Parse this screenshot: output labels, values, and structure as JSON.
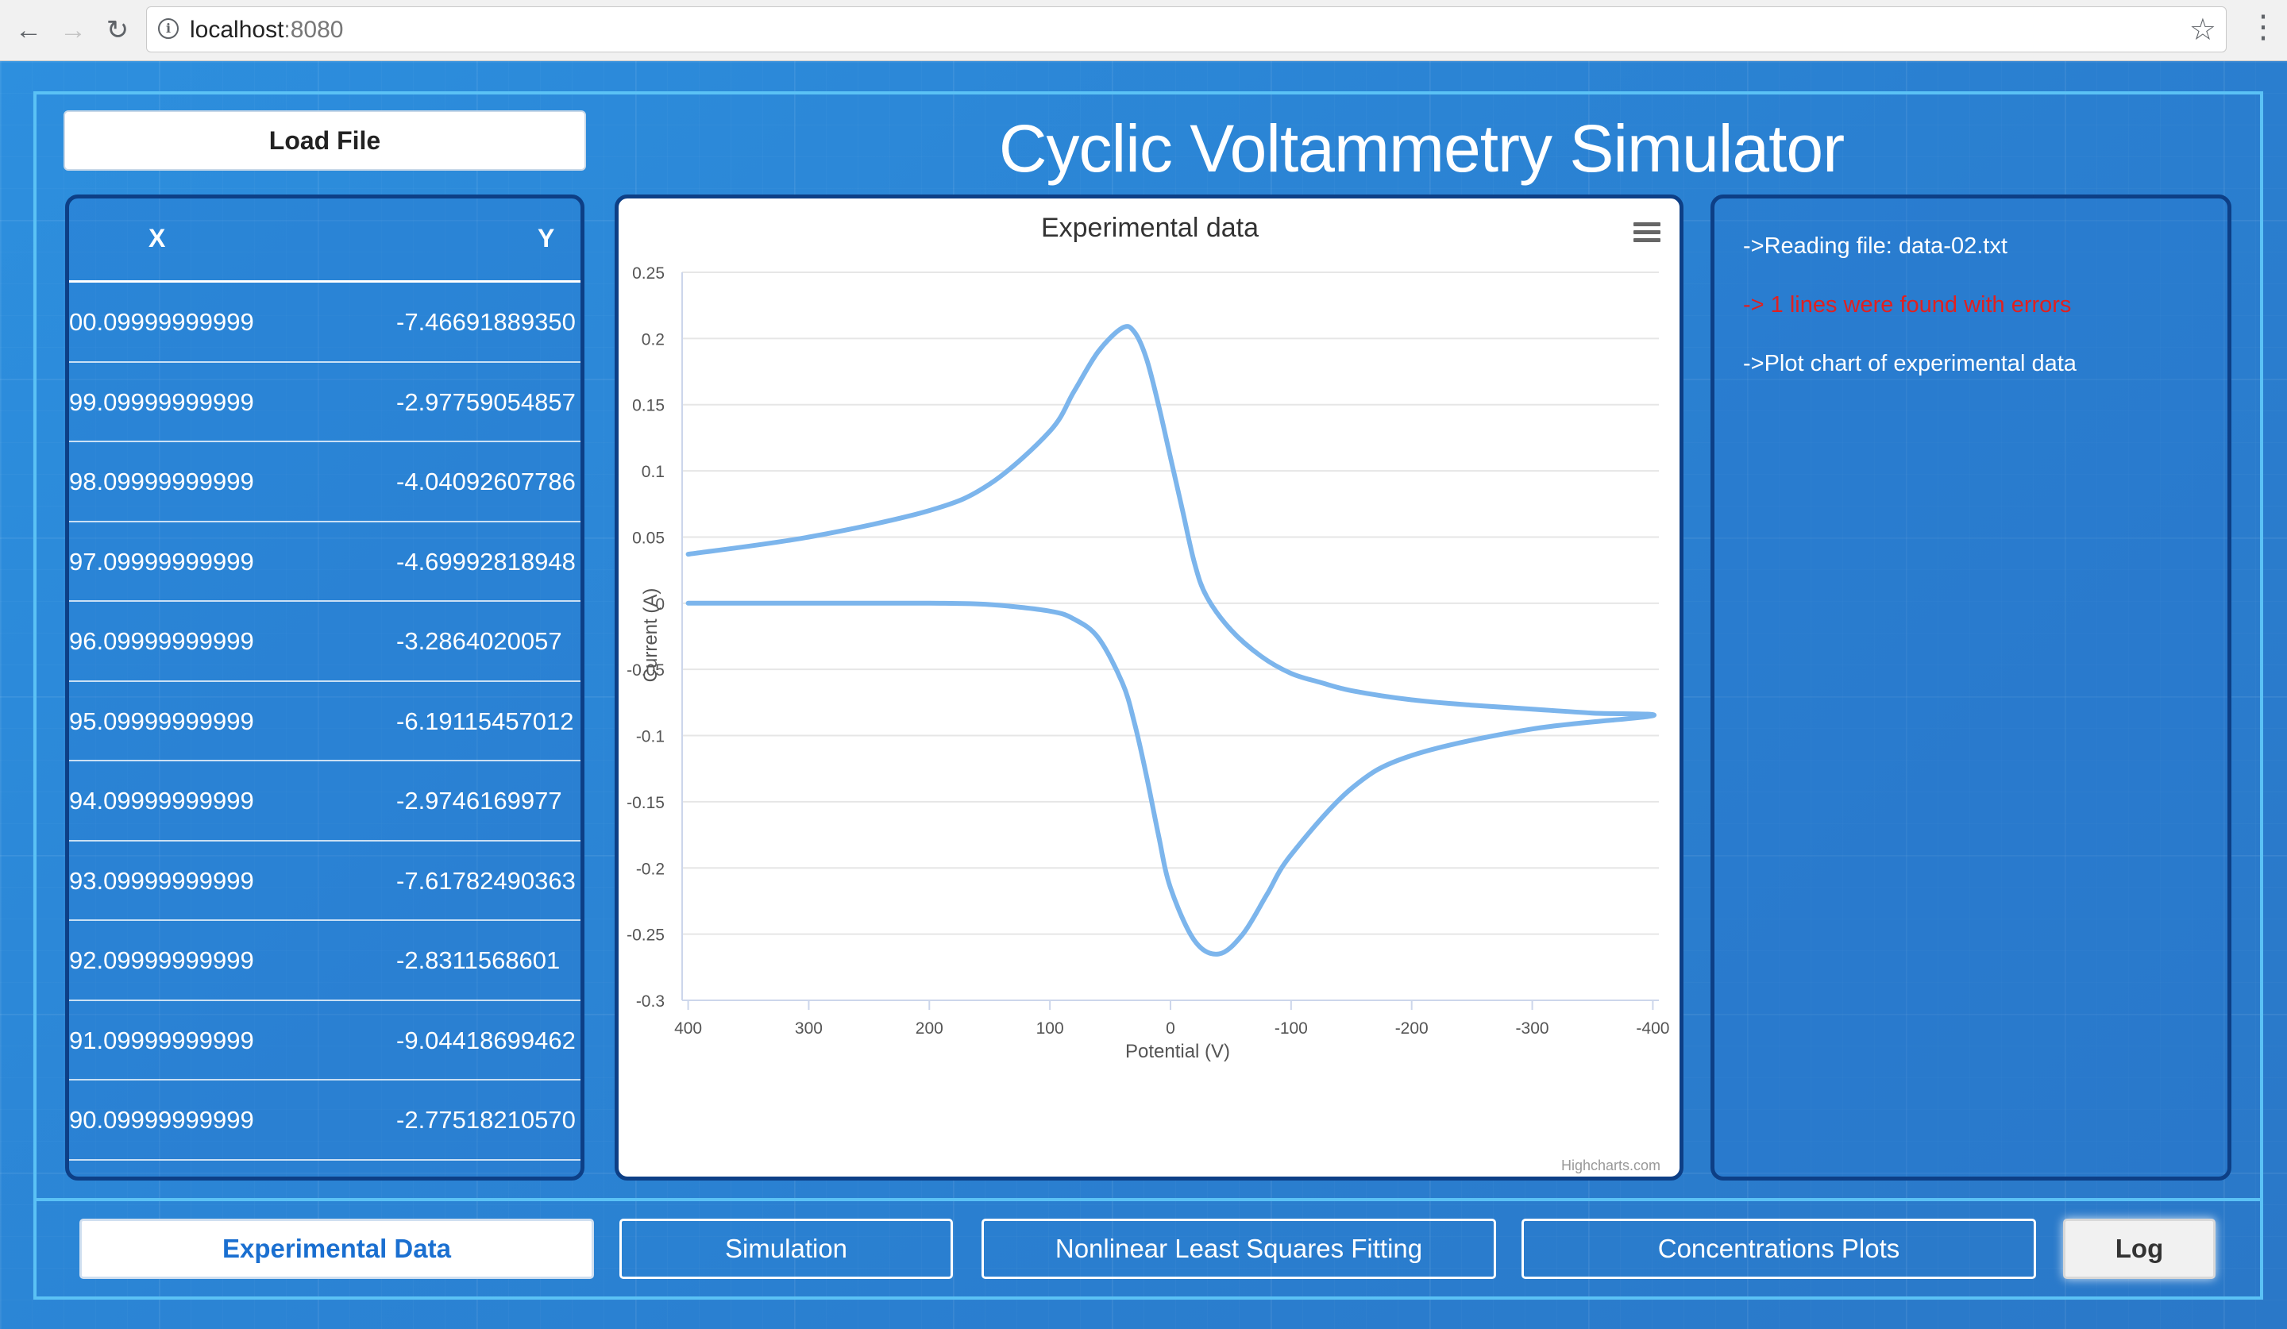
{
  "browser": {
    "url_host": "localhost",
    "url_port": ":8080"
  },
  "app": {
    "title": "Cyclic Voltammetry Simulator",
    "load_button": "Load File"
  },
  "table": {
    "headers": [
      "X",
      "Y"
    ],
    "rows": [
      {
        "x": "00.09999999999",
        "y": "-7.46691889350"
      },
      {
        "x": "99.09999999999",
        "y": "-2.97759054857"
      },
      {
        "x": "98.09999999999",
        "y": "-4.04092607786"
      },
      {
        "x": "97.09999999999",
        "y": "-4.69992818948"
      },
      {
        "x": "96.09999999999",
        "y": "-3.2864020057"
      },
      {
        "x": "95.09999999999",
        "y": "-6.19115457012"
      },
      {
        "x": "94.09999999999",
        "y": "-2.9746169977"
      },
      {
        "x": "93.09999999999",
        "y": "-7.61782490363"
      },
      {
        "x": "92.09999999999",
        "y": "-2.8311568601"
      },
      {
        "x": "91.09999999999",
        "y": "-9.04418699462"
      },
      {
        "x": "90.09999999999",
        "y": "-2.77518210570"
      }
    ]
  },
  "chart": {
    "credit": "Highcharts.com"
  },
  "chart_data": {
    "type": "line",
    "title": "Experimental data",
    "xlabel": "Potential (V)",
    "ylabel": "Current (A)",
    "xlim": [
      405,
      -405
    ],
    "ylim": [
      -0.3,
      0.25
    ],
    "x_ticks": [
      400,
      300,
      200,
      100,
      0,
      -100,
      -200,
      -300,
      -400
    ],
    "y_ticks": [
      0.25,
      0.2,
      0.15,
      0.1,
      0.05,
      0,
      -0.05,
      -0.1,
      -0.15,
      -0.2,
      -0.25,
      -0.3
    ],
    "grid": true,
    "series": [
      {
        "color": "#7cb5ec",
        "x": [
          400,
          300,
          200,
          150,
          100,
          80,
          60,
          40,
          30,
          20,
          10,
          0,
          -20,
          -40,
          -60,
          -80,
          -100,
          -150,
          -200,
          -300,
          -400,
          -350,
          -300,
          -250,
          -200,
          -150,
          -125,
          -100,
          -75,
          -50,
          -30,
          -20,
          -10,
          0,
          10,
          20,
          30,
          40,
          60,
          80,
          100,
          150,
          200,
          300,
          400
        ],
        "values": [
          0,
          0,
          0,
          -0.001,
          -0.006,
          -0.012,
          -0.026,
          -0.06,
          -0.09,
          -0.13,
          -0.175,
          -0.215,
          -0.255,
          -0.265,
          -0.25,
          -0.22,
          -0.19,
          -0.14,
          -0.115,
          -0.095,
          -0.085,
          -0.083,
          -0.08,
          -0.077,
          -0.073,
          -0.066,
          -0.06,
          -0.053,
          -0.04,
          -0.02,
          0.005,
          0.03,
          0.07,
          0.11,
          0.15,
          0.185,
          0.205,
          0.208,
          0.19,
          0.16,
          0.13,
          0.09,
          0.07,
          0.05,
          0.037
        ]
      }
    ]
  },
  "log": {
    "lines": [
      {
        "text": "->Reading file: data-02.txt"
      },
      {
        "text": "-> 1 lines were found with errors"
      },
      {
        "text": "->Plot chart of experimental data"
      }
    ]
  },
  "tabs": {
    "experimental": "Experimental Data",
    "simulation": "Simulation",
    "fitting": "Nonlinear Least Squares Fitting",
    "concentrations": "Concentrations Plots",
    "log": "Log"
  }
}
